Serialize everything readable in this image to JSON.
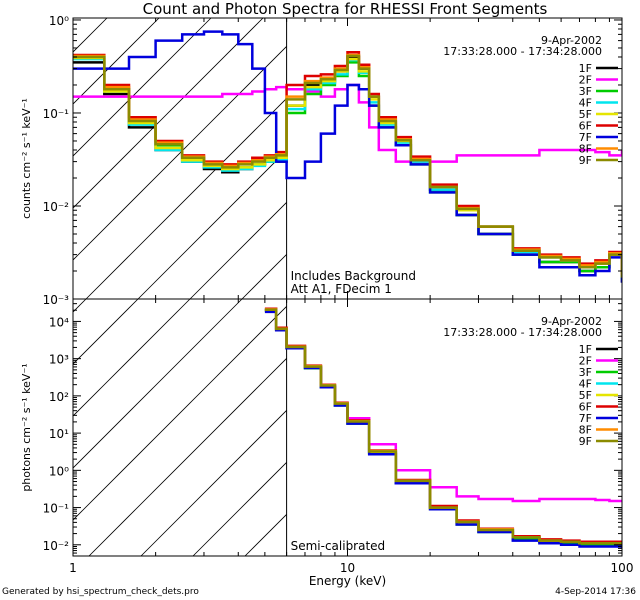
{
  "title": "Count and Photon Spectra for RHESSI Front Segments",
  "footer_left": "Generated by hsi_spectrum_check_dets.pro",
  "footer_right": "4-Sep-2014 17:36",
  "chart_data": [
    {
      "type": "line",
      "panel": "top",
      "title": "Count and Photon Spectra for RHESSI Front Segments",
      "xlabel": "",
      "ylabel": "counts cm⁻² s⁻¹ keV⁻¹",
      "xscale": "log",
      "yscale": "log",
      "xlim": [
        1,
        100
      ],
      "ylim": [
        0.001,
        1.05
      ],
      "xticks": [],
      "yticks": [
        "10⁻³",
        "10⁻²",
        "10⁻¹",
        "10⁰"
      ],
      "ytick_values": [
        0.001,
        0.01,
        0.1,
        1
      ],
      "hatched_region_max_keV": 6,
      "date": "9-Apr-2002",
      "time_range": "17:33:28.000 - 17:34:28.000",
      "annotation": [
        "Includes Background",
        "Att A1, FDecim 1"
      ],
      "series": [
        {
          "name": "1F",
          "color": "#000000",
          "x": [
            1,
            1.3,
            1.6,
            2,
            2.5,
            3,
            3.5,
            4,
            4.5,
            5,
            5.5,
            6,
            7,
            8,
            9,
            10,
            11,
            12,
            13,
            15,
            17,
            20,
            25,
            30,
            40,
            50,
            60,
            70,
            80,
            90,
            100
          ],
          "y": [
            0.35,
            0.16,
            0.07,
            0.04,
            0.03,
            0.025,
            0.023,
            0.025,
            0.028,
            0.03,
            0.03,
            0.12,
            0.2,
            0.22,
            0.28,
            0.4,
            0.3,
            0.15,
            0.08,
            0.05,
            0.03,
            0.015,
            0.008,
            0.005,
            0.003,
            0.0025,
            0.0025,
            0.002,
            0.0022,
            0.003,
            0.0015
          ]
        },
        {
          "name": "2F",
          "color": "#ff00ff",
          "x": [
            1,
            1.3,
            1.6,
            2,
            2.5,
            3,
            3.5,
            4,
            4.5,
            5,
            5.5,
            6,
            7,
            8,
            9,
            10,
            11,
            12,
            13,
            15,
            17,
            20,
            25,
            30,
            40,
            50,
            60,
            70,
            80,
            90,
            100
          ],
          "y": [
            0.15,
            0.15,
            0.15,
            0.15,
            0.15,
            0.15,
            0.16,
            0.16,
            0.17,
            0.18,
            0.19,
            0.18,
            0.17,
            0.15,
            0.18,
            0.2,
            0.13,
            0.07,
            0.04,
            0.03,
            0.03,
            0.03,
            0.035,
            0.035,
            0.035,
            0.04,
            0.04,
            0.04,
            0.038,
            0.035,
            0.04
          ]
        },
        {
          "name": "3F",
          "color": "#00cc00",
          "x": [
            1,
            1.3,
            1.6,
            2,
            2.5,
            3,
            3.5,
            4,
            4.5,
            5,
            5.5,
            6,
            7,
            8,
            9,
            10,
            11,
            12,
            13,
            15,
            17,
            20,
            25,
            30,
            40,
            50,
            60,
            70,
            80,
            90,
            100
          ],
          "y": [
            0.4,
            0.18,
            0.08,
            0.045,
            0.032,
            0.027,
            0.025,
            0.026,
            0.028,
            0.03,
            0.032,
            0.1,
            0.16,
            0.2,
            0.25,
            0.35,
            0.25,
            0.12,
            0.07,
            0.045,
            0.028,
            0.014,
            0.008,
            0.005,
            0.003,
            0.0025,
            0.0025,
            0.002,
            0.0022,
            0.003,
            0.0016
          ]
        },
        {
          "name": "4F",
          "color": "#00e5ee",
          "x": [
            1,
            1.3,
            1.6,
            2,
            2.5,
            3,
            3.5,
            4,
            4.5,
            5,
            5.5,
            6,
            7,
            8,
            9,
            10,
            11,
            12,
            13,
            15,
            17,
            20,
            25,
            30,
            40,
            50,
            60,
            70,
            80,
            90,
            100
          ],
          "y": [
            0.38,
            0.17,
            0.075,
            0.04,
            0.03,
            0.026,
            0.024,
            0.025,
            0.027,
            0.03,
            0.031,
            0.11,
            0.18,
            0.21,
            0.26,
            0.37,
            0.27,
            0.13,
            0.075,
            0.048,
            0.03,
            0.015,
            0.009,
            0.006,
            0.0032,
            0.0028,
            0.0026,
            0.0022,
            0.0024,
            0.003,
            0.0017
          ]
        },
        {
          "name": "5F",
          "color": "#e5e500",
          "x": [
            1,
            1.3,
            1.6,
            2,
            2.5,
            3,
            3.5,
            4,
            4.5,
            5,
            5.5,
            6,
            7,
            8,
            9,
            10,
            11,
            12,
            13,
            15,
            17,
            20,
            25,
            30,
            40,
            50,
            60,
            70,
            80,
            90,
            100
          ],
          "y": [
            0.39,
            0.17,
            0.078,
            0.042,
            0.031,
            0.027,
            0.025,
            0.026,
            0.028,
            0.031,
            0.033,
            0.12,
            0.19,
            0.22,
            0.28,
            0.38,
            0.28,
            0.14,
            0.078,
            0.05,
            0.031,
            0.016,
            0.009,
            0.006,
            0.0033,
            0.0028,
            0.0026,
            0.0022,
            0.0024,
            0.003,
            0.0017
          ]
        },
        {
          "name": "6F",
          "color": "#dd0000",
          "x": [
            1,
            1.3,
            1.6,
            2,
            2.5,
            3,
            3.5,
            4,
            4.5,
            5,
            5.5,
            6,
            7,
            8,
            9,
            10,
            11,
            12,
            13,
            15,
            17,
            20,
            25,
            30,
            40,
            50,
            60,
            70,
            80,
            90,
            100
          ],
          "y": [
            0.42,
            0.2,
            0.09,
            0.05,
            0.035,
            0.03,
            0.028,
            0.03,
            0.033,
            0.035,
            0.038,
            0.2,
            0.25,
            0.26,
            0.32,
            0.45,
            0.33,
            0.16,
            0.09,
            0.055,
            0.034,
            0.017,
            0.01,
            0.006,
            0.0035,
            0.003,
            0.0028,
            0.0024,
            0.0026,
            0.0032,
            0.0018
          ]
        },
        {
          "name": "7F",
          "color": "#0000dd",
          "x": [
            1,
            1.3,
            1.6,
            2,
            2.5,
            3,
            3.5,
            4,
            4.5,
            5,
            5.5,
            6,
            7,
            8,
            9,
            10,
            11,
            12,
            13,
            15,
            17,
            20,
            25,
            30,
            40,
            50,
            60,
            70,
            80,
            90,
            100
          ],
          "y": [
            0.3,
            0.3,
            0.4,
            0.6,
            0.7,
            0.75,
            0.7,
            0.55,
            0.3,
            0.1,
            0.03,
            0.02,
            0.03,
            0.06,
            0.12,
            0.2,
            0.18,
            0.12,
            0.07,
            0.045,
            0.028,
            0.014,
            0.008,
            0.005,
            0.003,
            0.0022,
            0.0022,
            0.0018,
            0.002,
            0.0028,
            0.0015
          ]
        },
        {
          "name": "8F",
          "color": "#ff8c00",
          "x": [
            1,
            1.3,
            1.6,
            2,
            2.5,
            3,
            3.5,
            4,
            4.5,
            5,
            5.5,
            6,
            7,
            8,
            9,
            10,
            11,
            12,
            13,
            15,
            17,
            20,
            25,
            30,
            40,
            50,
            60,
            70,
            80,
            90,
            100
          ],
          "y": [
            0.41,
            0.19,
            0.085,
            0.048,
            0.034,
            0.029,
            0.027,
            0.029,
            0.031,
            0.034,
            0.036,
            0.15,
            0.22,
            0.24,
            0.3,
            0.42,
            0.31,
            0.15,
            0.085,
            0.052,
            0.032,
            0.016,
            0.0095,
            0.006,
            0.0034,
            0.0029,
            0.0027,
            0.0023,
            0.0025,
            0.0031,
            0.0018
          ]
        },
        {
          "name": "9F",
          "color": "#8b8b00",
          "x": [
            1,
            1.3,
            1.6,
            2,
            2.5,
            3,
            3.5,
            4,
            4.5,
            5,
            5.5,
            6,
            7,
            8,
            9,
            10,
            11,
            12,
            13,
            15,
            17,
            20,
            25,
            30,
            40,
            50,
            60,
            70,
            80,
            90,
            100
          ],
          "y": [
            0.4,
            0.18,
            0.082,
            0.046,
            0.033,
            0.028,
            0.026,
            0.028,
            0.03,
            0.033,
            0.035,
            0.14,
            0.21,
            0.23,
            0.29,
            0.41,
            0.3,
            0.15,
            0.082,
            0.051,
            0.031,
            0.016,
            0.0093,
            0.006,
            0.0033,
            0.0028,
            0.0026,
            0.0022,
            0.0024,
            0.003,
            0.0017
          ]
        }
      ]
    },
    {
      "type": "line",
      "panel": "bottom",
      "xlabel": "Energy (keV)",
      "ylabel": "photons cm⁻² s⁻¹ keV⁻¹",
      "xscale": "log",
      "yscale": "log",
      "xlim": [
        1,
        100
      ],
      "ylim": [
        0.005,
        40000
      ],
      "xticks": [
        "1",
        "10",
        "100"
      ],
      "xtick_values": [
        1,
        10,
        100
      ],
      "yticks": [
        "10⁻²",
        "10⁻¹",
        "10⁰",
        "10¹",
        "10²",
        "10³",
        "10⁴"
      ],
      "ytick_values": [
        0.01,
        0.1,
        1,
        10,
        100,
        1000,
        10000
      ],
      "hatched_region_max_keV": 6,
      "date": "9-Apr-2002",
      "time_range": "17:33:28.000 - 17:34:28.000",
      "annotation": [
        "Semi-calibrated"
      ],
      "series": [
        {
          "name": "1F",
          "color": "#000000",
          "x": [
            5,
            5.5,
            6,
            7,
            8,
            9,
            10,
            12,
            15,
            20,
            25,
            30,
            40,
            50,
            60,
            70,
            80,
            90,
            100
          ],
          "y": [
            20000,
            6000,
            2000,
            600,
            180,
            60,
            20,
            3,
            0.5,
            0.1,
            0.04,
            0.025,
            0.015,
            0.012,
            0.012,
            0.01,
            0.01,
            0.01,
            0.008
          ]
        },
        {
          "name": "2F",
          "color": "#ff00ff",
          "x": [
            5,
            5.5,
            6,
            7,
            8,
            9,
            10,
            12,
            15,
            20,
            25,
            30,
            40,
            50,
            60,
            70,
            80,
            90,
            100
          ],
          "y": [
            20000,
            6000,
            2000,
            600,
            180,
            65,
            25,
            5,
            1,
            0.35,
            0.2,
            0.17,
            0.15,
            0.17,
            0.17,
            0.17,
            0.16,
            0.15,
            0.16
          ]
        },
        {
          "name": "3F",
          "color": "#00cc00",
          "x": [
            5,
            5.5,
            6,
            7,
            8,
            9,
            10,
            12,
            15,
            20,
            25,
            30,
            40,
            50,
            60,
            70,
            80,
            90,
            100
          ],
          "y": [
            19000,
            6200,
            1900,
            550,
            170,
            55,
            18,
            2.8,
            0.45,
            0.09,
            0.035,
            0.022,
            0.014,
            0.012,
            0.011,
            0.01,
            0.01,
            0.01,
            0.009
          ]
        },
        {
          "name": "4F",
          "color": "#00e5ee",
          "x": [
            5,
            5.5,
            6,
            7,
            8,
            9,
            10,
            12,
            15,
            20,
            25,
            30,
            40,
            50,
            60,
            70,
            80,
            90,
            100
          ],
          "y": [
            21000,
            6500,
            2100,
            620,
            190,
            62,
            21,
            3.2,
            0.52,
            0.1,
            0.04,
            0.025,
            0.016,
            0.013,
            0.012,
            0.011,
            0.011,
            0.011,
            0.01
          ]
        },
        {
          "name": "5F",
          "color": "#e5e500",
          "x": [
            5,
            5.5,
            6,
            7,
            8,
            9,
            10,
            12,
            15,
            20,
            25,
            30,
            40,
            50,
            60,
            70,
            80,
            90,
            100
          ],
          "y": [
            20000,
            6100,
            2000,
            600,
            185,
            60,
            20,
            3.1,
            0.5,
            0.1,
            0.04,
            0.025,
            0.016,
            0.013,
            0.012,
            0.011,
            0.011,
            0.011,
            0.01
          ]
        },
        {
          "name": "6F",
          "color": "#dd0000",
          "x": [
            5,
            5.5,
            6,
            7,
            8,
            9,
            10,
            12,
            15,
            20,
            25,
            30,
            40,
            50,
            60,
            70,
            80,
            90,
            100
          ],
          "y": [
            22000,
            6800,
            2200,
            650,
            200,
            65,
            22,
            3.4,
            0.55,
            0.11,
            0.045,
            0.027,
            0.017,
            0.014,
            0.013,
            0.012,
            0.012,
            0.012,
            0.011
          ]
        },
        {
          "name": "7F",
          "color": "#0000dd",
          "x": [
            5,
            5.5,
            6,
            7,
            8,
            9,
            10,
            12,
            15,
            20,
            25,
            30,
            40,
            50,
            60,
            70,
            80,
            90,
            100
          ],
          "y": [
            18000,
            5800,
            1900,
            560,
            170,
            55,
            18,
            2.7,
            0.45,
            0.09,
            0.035,
            0.022,
            0.013,
            0.011,
            0.01,
            0.009,
            0.009,
            0.009,
            0.008
          ]
        },
        {
          "name": "8F",
          "color": "#ff8c00",
          "x": [
            5,
            5.5,
            6,
            7,
            8,
            9,
            10,
            12,
            15,
            20,
            25,
            30,
            40,
            50,
            60,
            70,
            80,
            90,
            100
          ],
          "y": [
            21000,
            6400,
            2100,
            630,
            195,
            63,
            21,
            3.3,
            0.53,
            0.1,
            0.042,
            0.026,
            0.016,
            0.013,
            0.012,
            0.011,
            0.011,
            0.011,
            0.01
          ]
        },
        {
          "name": "9F",
          "color": "#8b8b00",
          "x": [
            5,
            5.5,
            6,
            7,
            8,
            9,
            10,
            12,
            15,
            20,
            25,
            30,
            40,
            50,
            60,
            70,
            80,
            90,
            100
          ],
          "y": [
            20500,
            6300,
            2050,
            610,
            190,
            62,
            20.5,
            3.2,
            0.52,
            0.1,
            0.041,
            0.025,
            0.016,
            0.013,
            0.012,
            0.011,
            0.011,
            0.011,
            0.01
          ]
        }
      ]
    }
  ]
}
